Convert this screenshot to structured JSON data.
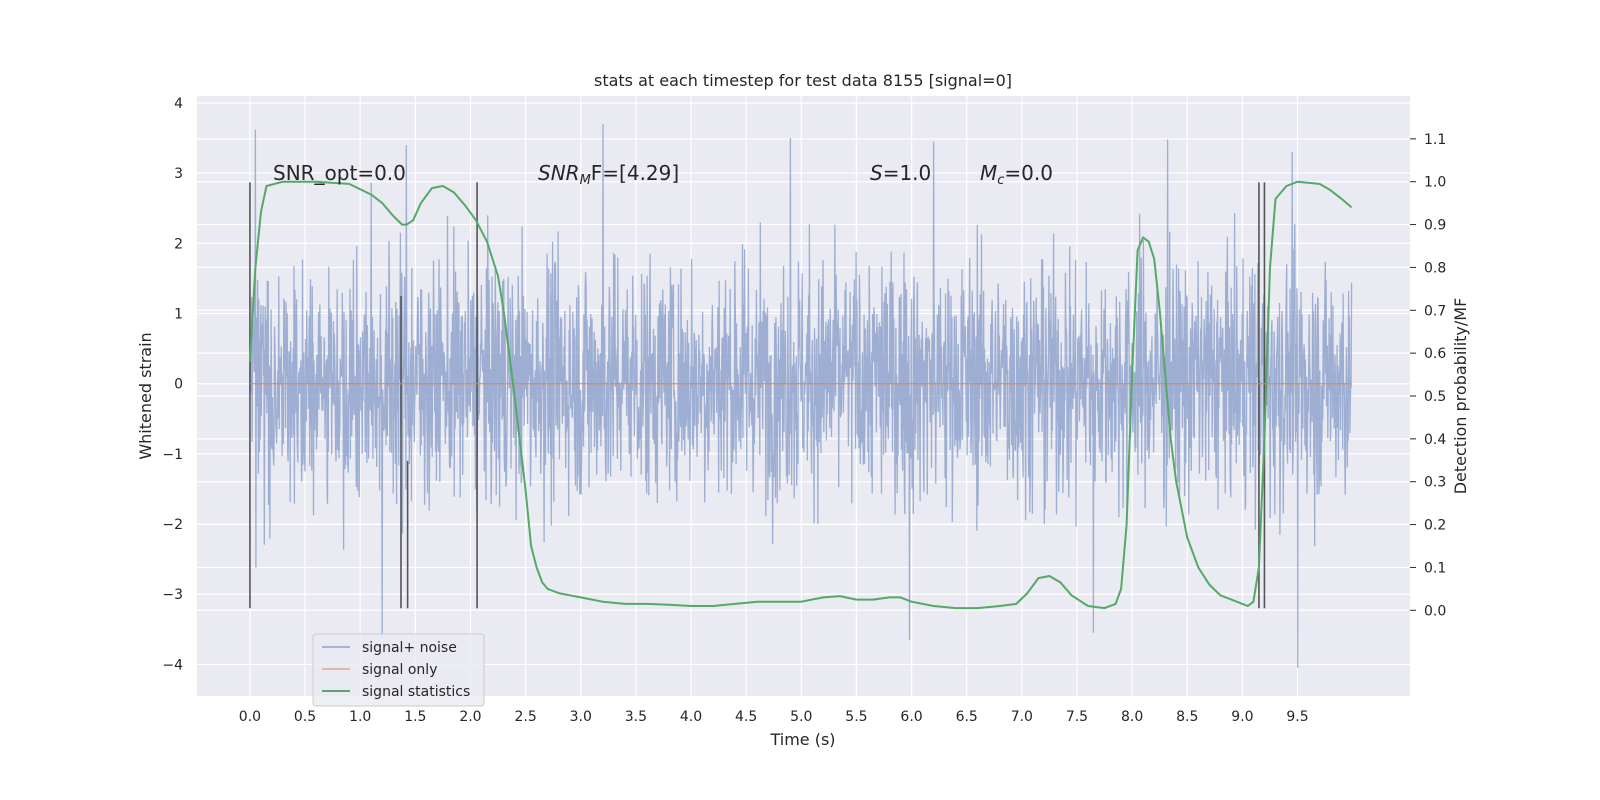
{
  "chart_data": {
    "type": "line",
    "title": "stats at each timestep for test data 8155 [signal=0]",
    "xlabel": "Time (s)",
    "ylabel": "Whitened strain",
    "y2label": "Detection probability/MF",
    "xlim": [
      -0.48,
      10.52
    ],
    "ylim": [
      -4.45,
      4.1
    ],
    "y2lim": [
      -0.2,
      1.2
    ],
    "x_ticks": [
      "0.0",
      "0.5",
      "1.0",
      "1.5",
      "2.0",
      "2.5",
      "3.0",
      "3.5",
      "4.0",
      "4.5",
      "5.0",
      "5.5",
      "6.0",
      "6.5",
      "7.0",
      "7.5",
      "8.0",
      "8.5",
      "9.0",
      "9.5"
    ],
    "y_ticks": [
      "4",
      "3",
      "2",
      "1",
      "0",
      "−1",
      "−2",
      "−3",
      "−4"
    ],
    "y2_ticks": [
      "1.1",
      "1.0",
      "0.9",
      "0.8",
      "0.7",
      "0.6",
      "0.5",
      "0.4",
      "0.3",
      "0.2",
      "0.1",
      "0.0"
    ],
    "grid": true,
    "legend_position": "lower-left",
    "annotations": {
      "snr_opt": "SNR_opt=0.0",
      "snr_mf": "SNR",
      "snr_mf_sub": "M",
      "snr_mf_tail": "F=[4.29]",
      "s": "S",
      "s_tail": "=1.0",
      "mc": "M",
      "mc_sub": "c",
      "mc_tail": "=0.0"
    },
    "series": [
      {
        "name": "signal+ noise",
        "color": "#8fa3cc",
        "axis": "left",
        "x_range": [
          0.0,
          9.99
        ],
        "typical_range": [
          -1.5,
          1.65
        ],
        "max": 3.7,
        "min": -4.05,
        "peaks": [
          {
            "x": 0.05,
            "y": 3.62
          },
          {
            "x": 1.42,
            "y": 3.4
          },
          {
            "x": 3.2,
            "y": 3.7
          },
          {
            "x": 4.9,
            "y": 3.5
          },
          {
            "x": 6.2,
            "y": 3.45
          },
          {
            "x": 8.32,
            "y": 3.48
          },
          {
            "x": 9.45,
            "y": 3.3
          },
          {
            "x": 1.2,
            "y": -3.6
          },
          {
            "x": 5.98,
            "y": -3.65
          },
          {
            "x": 7.65,
            "y": -3.55
          },
          {
            "x": 9.5,
            "y": -4.05
          }
        ]
      },
      {
        "name": "signal only",
        "color": "#dd8452",
        "axis": "left",
        "x": [
          0.0,
          9.99
        ],
        "y": [
          0.0,
          0.0
        ]
      },
      {
        "name": "signal statistics",
        "color": "#55a868",
        "axis": "right",
        "x": [
          0.0,
          0.05,
          0.1,
          0.15,
          0.3,
          0.6,
          0.9,
          1.1,
          1.2,
          1.3,
          1.38,
          1.42,
          1.48,
          1.55,
          1.65,
          1.75,
          1.85,
          1.95,
          2.05,
          2.15,
          2.25,
          2.3,
          2.4,
          2.5,
          2.55,
          2.6,
          2.65,
          2.7,
          2.75,
          2.8,
          2.9,
          3.0,
          3.2,
          3.4,
          3.6,
          3.8,
          4.0,
          4.2,
          4.4,
          4.6,
          4.8,
          5.0,
          5.2,
          5.35,
          5.5,
          5.65,
          5.8,
          5.9,
          6.0,
          6.2,
          6.4,
          6.6,
          6.8,
          6.95,
          7.05,
          7.15,
          7.25,
          7.35,
          7.45,
          7.6,
          7.75,
          7.85,
          7.9,
          7.95,
          8.0,
          8.05,
          8.1,
          8.15,
          8.2,
          8.25,
          8.3,
          8.35,
          8.4,
          8.5,
          8.6,
          8.7,
          8.8,
          8.9,
          9.0,
          9.05,
          9.1,
          9.15,
          9.2,
          9.25,
          9.3,
          9.4,
          9.5,
          9.7,
          9.8,
          9.9,
          9.99
        ],
        "y": [
          0.58,
          0.8,
          0.93,
          0.99,
          1.0,
          1.0,
          0.995,
          0.97,
          0.95,
          0.92,
          0.9,
          0.9,
          0.91,
          0.95,
          0.985,
          0.99,
          0.975,
          0.945,
          0.91,
          0.86,
          0.78,
          0.7,
          0.5,
          0.28,
          0.15,
          0.1,
          0.065,
          0.05,
          0.045,
          0.04,
          0.035,
          0.03,
          0.02,
          0.015,
          0.015,
          0.013,
          0.01,
          0.01,
          0.015,
          0.02,
          0.02,
          0.02,
          0.03,
          0.033,
          0.025,
          0.025,
          0.03,
          0.03,
          0.02,
          0.01,
          0.005,
          0.005,
          0.01,
          0.015,
          0.04,
          0.075,
          0.08,
          0.065,
          0.035,
          0.01,
          0.005,
          0.015,
          0.05,
          0.2,
          0.55,
          0.84,
          0.87,
          0.86,
          0.82,
          0.7,
          0.55,
          0.4,
          0.3,
          0.17,
          0.1,
          0.06,
          0.035,
          0.025,
          0.015,
          0.01,
          0.02,
          0.1,
          0.4,
          0.8,
          0.96,
          0.99,
          1.0,
          0.995,
          0.98,
          0.96,
          0.94
        ]
      }
    ],
    "markers": {
      "color": "#555555",
      "lines": [
        {
          "x": 0.0,
          "y1": -3.2,
          "y2": 2.87
        },
        {
          "x": 1.37,
          "y1": -3.2,
          "y2": 1.25
        },
        {
          "x": 1.43,
          "y1": -3.2,
          "y2": -1.1
        },
        {
          "x": 2.06,
          "y1": -3.2,
          "y2": 2.87
        },
        {
          "x": 9.15,
          "y1": -3.2,
          "y2": 2.87
        },
        {
          "x": 9.2,
          "y1": -3.2,
          "y2": 2.87
        }
      ]
    }
  }
}
